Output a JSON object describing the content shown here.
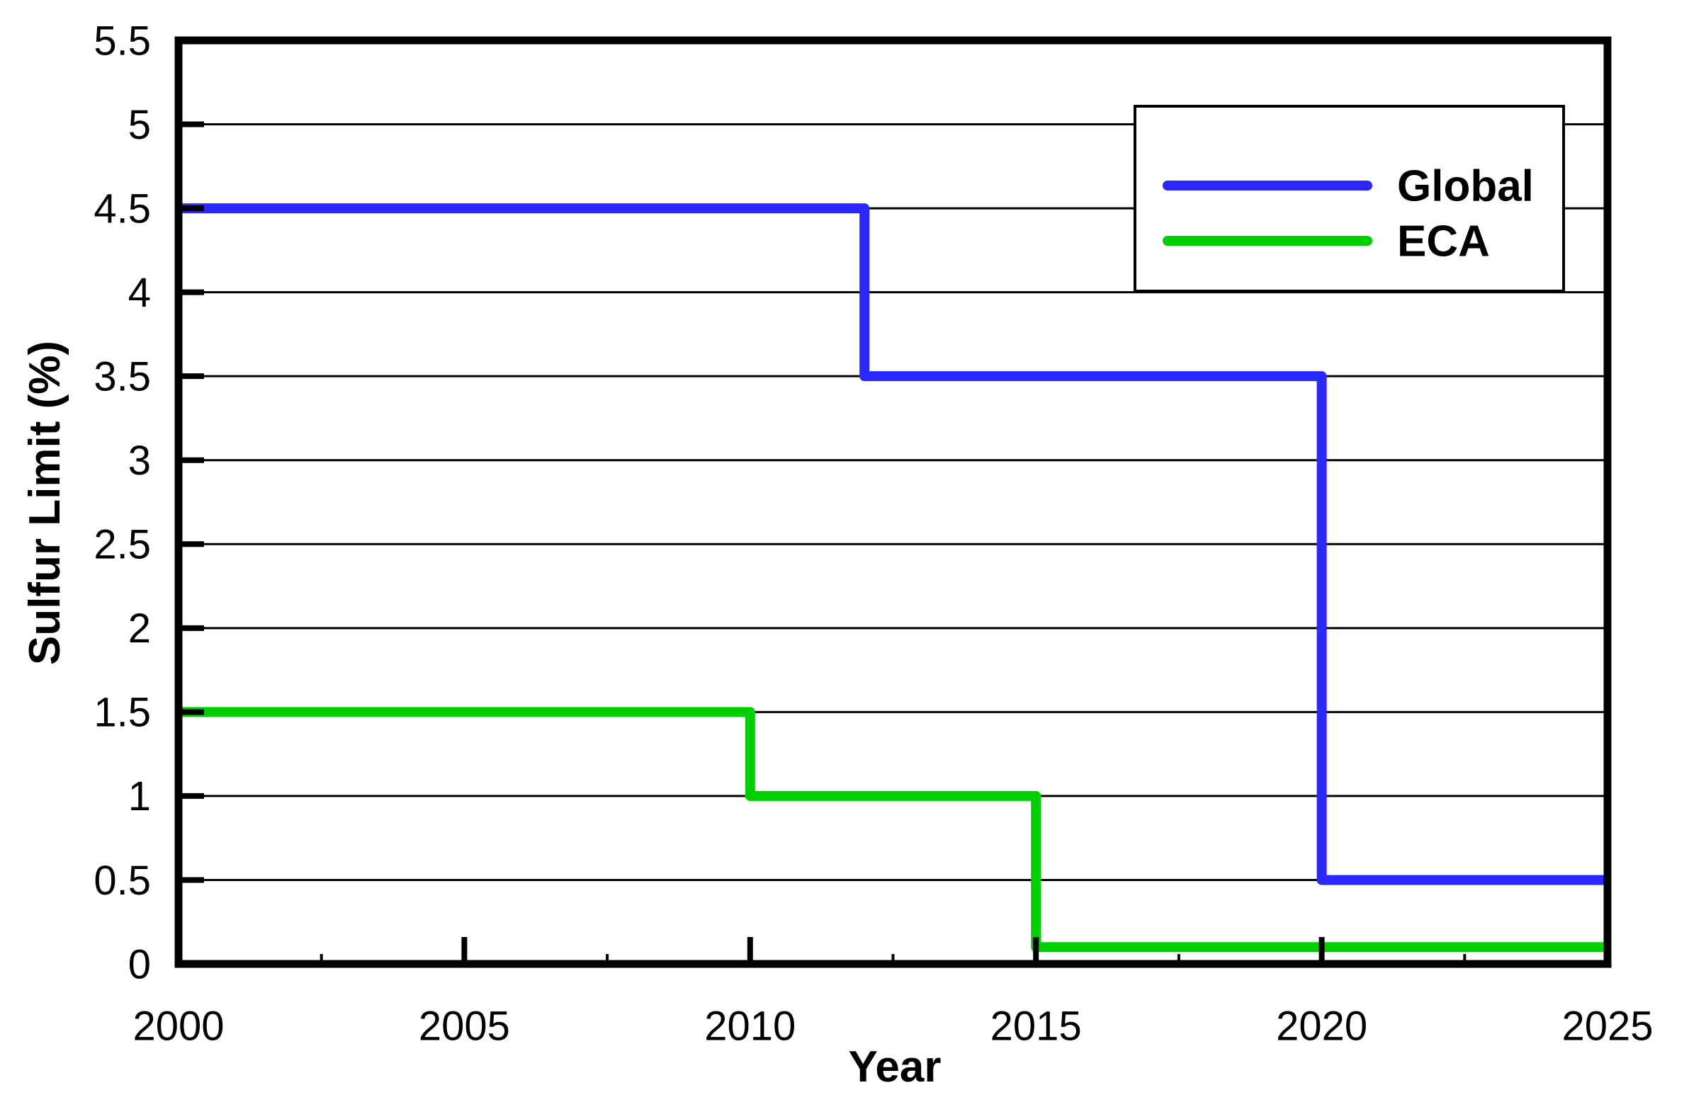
{
  "chart_data": {
    "type": "line",
    "line_style": "step",
    "title": "",
    "xlabel": "Year",
    "ylabel": "Sulfur Limit (%)",
    "xlim": [
      2000,
      2025
    ],
    "ylim": [
      0,
      5.5
    ],
    "grid": "horizontal",
    "background_color": "#ffffff",
    "axis_color": "#000000",
    "gridline_color": "#000000",
    "x_ticks": [
      {
        "v": 2000,
        "label": "2000"
      },
      {
        "v": 2005,
        "label": "2005"
      },
      {
        "v": 2010,
        "label": "2010"
      },
      {
        "v": 2015,
        "label": "2015"
      },
      {
        "v": 2020,
        "label": "2020"
      },
      {
        "v": 2025,
        "label": "2025"
      }
    ],
    "x_minor_ticks": [
      2002.5,
      2007.5,
      2012.5,
      2017.5,
      2022.5
    ],
    "y_ticks": [
      {
        "v": 0,
        "label": "0"
      },
      {
        "v": 0.5,
        "label": "0.5"
      },
      {
        "v": 1,
        "label": "1"
      },
      {
        "v": 1.5,
        "label": "1.5"
      },
      {
        "v": 2,
        "label": "2"
      },
      {
        "v": 2.5,
        "label": "2.5"
      },
      {
        "v": 3,
        "label": "3"
      },
      {
        "v": 3.5,
        "label": "3.5"
      },
      {
        "v": 4,
        "label": "4"
      },
      {
        "v": 4.5,
        "label": "4.5"
      },
      {
        "v": 5,
        "label": "5"
      },
      {
        "v": 5.5,
        "label": "5.5"
      }
    ],
    "legend": {
      "position": "upper-right",
      "border_color": "#000000",
      "fill_color": "#ffffff",
      "entries": [
        {
          "label": "Global",
          "color": "#2b28ff"
        },
        {
          "label": "ECA",
          "color": "#00d000"
        }
      ]
    },
    "series": [
      {
        "name": "Global",
        "color": "#2b28ff",
        "points": [
          [
            2000,
            4.5
          ],
          [
            2012,
            4.5
          ],
          [
            2012,
            3.5
          ],
          [
            2020,
            3.5
          ],
          [
            2020,
            0.5
          ],
          [
            2025,
            0.5
          ]
        ]
      },
      {
        "name": "ECA",
        "color": "#00d000",
        "points": [
          [
            2000,
            1.5
          ],
          [
            2010,
            1.5
          ],
          [
            2010,
            1.0
          ],
          [
            2015,
            1.0
          ],
          [
            2015,
            0.1
          ],
          [
            2025,
            0.1
          ]
        ]
      }
    ]
  }
}
